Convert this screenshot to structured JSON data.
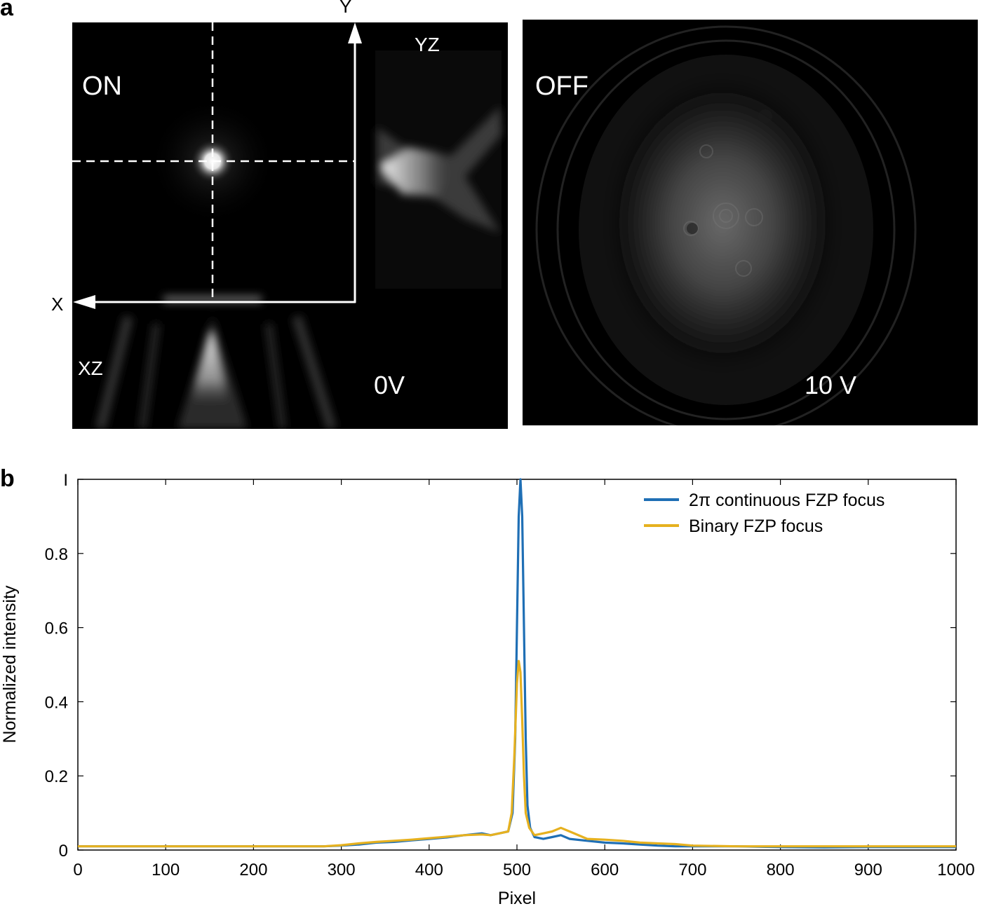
{
  "panel_a": {
    "letter": "a",
    "on_panel": {
      "mode_label": "ON",
      "yz_label": "YZ",
      "xz_label": "XZ",
      "voltage_label": "0V",
      "axis_x_label": "X",
      "axis_y_label": "Y"
    },
    "off_panel": {
      "mode_label": "OFF",
      "voltage_label": "10 V"
    }
  },
  "panel_b": {
    "letter": "b"
  },
  "chart_data": {
    "type": "line",
    "xlabel": "Pixel",
    "ylabel": "Normalized intensity",
    "xlim": [
      0,
      1000
    ],
    "ylim": [
      0,
      1
    ],
    "x_ticks": [
      0,
      100,
      200,
      300,
      400,
      500,
      600,
      700,
      800,
      900,
      1000
    ],
    "y_ticks": [
      0,
      0.2,
      0.4,
      0.6,
      0.8,
      1
    ],
    "y_tick_labels": [
      "0",
      "0.2",
      "0.4",
      "0.6",
      "0.8",
      "I"
    ],
    "grid": false,
    "legend_position": "top-right",
    "series": [
      {
        "name": "2π continuous FZP focus",
        "color": "#1f6fb5",
        "x": [
          0,
          100,
          200,
          280,
          300,
          320,
          340,
          360,
          380,
          400,
          420,
          440,
          460,
          470,
          480,
          490,
          495,
          498,
          500,
          502,
          504,
          506,
          508,
          510,
          512,
          515,
          520,
          530,
          540,
          550,
          560,
          580,
          600,
          620,
          640,
          660,
          680,
          700,
          750,
          800,
          850,
          900,
          950,
          1000
        ],
        "y": [
          0.01,
          0.01,
          0.01,
          0.01,
          0.012,
          0.015,
          0.02,
          0.022,
          0.026,
          0.03,
          0.034,
          0.04,
          0.045,
          0.04,
          0.045,
          0.05,
          0.1,
          0.3,
          0.6,
          0.9,
          1.0,
          0.9,
          0.6,
          0.3,
          0.12,
          0.06,
          0.035,
          0.03,
          0.035,
          0.04,
          0.03,
          0.025,
          0.02,
          0.018,
          0.015,
          0.012,
          0.01,
          0.01,
          0.01,
          0.008,
          0.007,
          0.008,
          0.008,
          0.008
        ]
      },
      {
        "name": "Binary FZP focus",
        "color": "#e6b11f",
        "x": [
          0,
          100,
          200,
          280,
          300,
          320,
          340,
          360,
          380,
          400,
          420,
          440,
          460,
          470,
          480,
          490,
          494,
          497,
          500,
          502,
          504,
          506,
          508,
          510,
          514,
          520,
          530,
          540,
          550,
          560,
          580,
          600,
          620,
          640,
          660,
          680,
          700,
          750,
          800,
          850,
          900,
          950,
          1000
        ],
        "y": [
          0.01,
          0.01,
          0.01,
          0.01,
          0.013,
          0.018,
          0.022,
          0.025,
          0.028,
          0.032,
          0.036,
          0.04,
          0.042,
          0.04,
          0.045,
          0.05,
          0.1,
          0.25,
          0.45,
          0.51,
          0.48,
          0.35,
          0.2,
          0.1,
          0.06,
          0.04,
          0.045,
          0.05,
          0.06,
          0.05,
          0.03,
          0.028,
          0.025,
          0.02,
          0.018,
          0.016,
          0.012,
          0.01,
          0.01,
          0.01,
          0.01,
          0.01,
          0.01
        ]
      }
    ]
  }
}
